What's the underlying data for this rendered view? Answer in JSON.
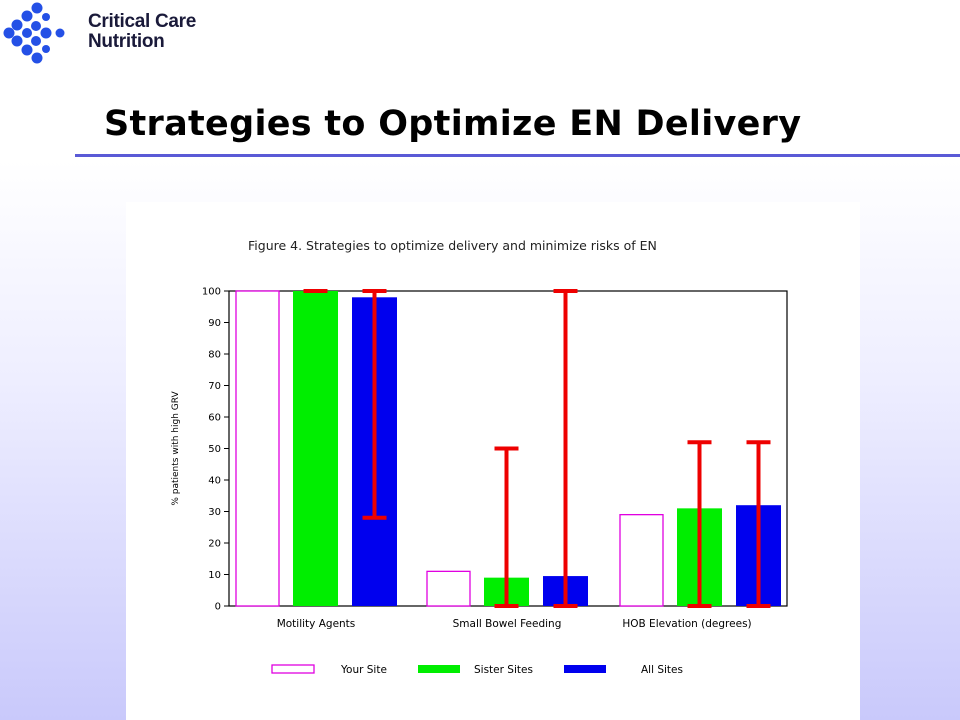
{
  "logo": {
    "line1": "Critical Care",
    "line2": "Nutrition",
    "icon": "cross-dots-logo-icon",
    "color": "#2450e6"
  },
  "slide": {
    "title": "Strategies to Optimize EN Delivery"
  },
  "colors": {
    "your_site": "#e000e0",
    "sister_sites": "#00ee00",
    "all_sites": "#0000ee",
    "error_bar": "#ee0000",
    "accent_rule": "#5a5ad6"
  },
  "chart_data": {
    "type": "bar",
    "title": "Figure 4. Strategies to optimize delivery and minimize risks of EN",
    "ylabel": "% patients with high GRV",
    "xlabel": "",
    "ylim": [
      0,
      100
    ],
    "yticks": [
      0,
      10,
      20,
      30,
      40,
      50,
      60,
      70,
      80,
      90,
      100
    ],
    "categories": [
      "Motility Agents",
      "Small Bowel Feeding",
      "HOB Elevation (degrees)"
    ],
    "series": [
      {
        "name": "Your Site",
        "values": [
          100,
          11,
          29
        ],
        "style": "outline"
      },
      {
        "name": "Sister Sites",
        "values": [
          100,
          9,
          31
        ],
        "error": [
          [
            100,
            100
          ],
          [
            0,
            50
          ],
          [
            0,
            52
          ]
        ]
      },
      {
        "name": "All Sites",
        "values": [
          98,
          9.5,
          32
        ],
        "error": [
          [
            28,
            100
          ],
          [
            0,
            100
          ],
          [
            0,
            52
          ]
        ]
      }
    ],
    "grid": false,
    "legend": "bottom"
  }
}
